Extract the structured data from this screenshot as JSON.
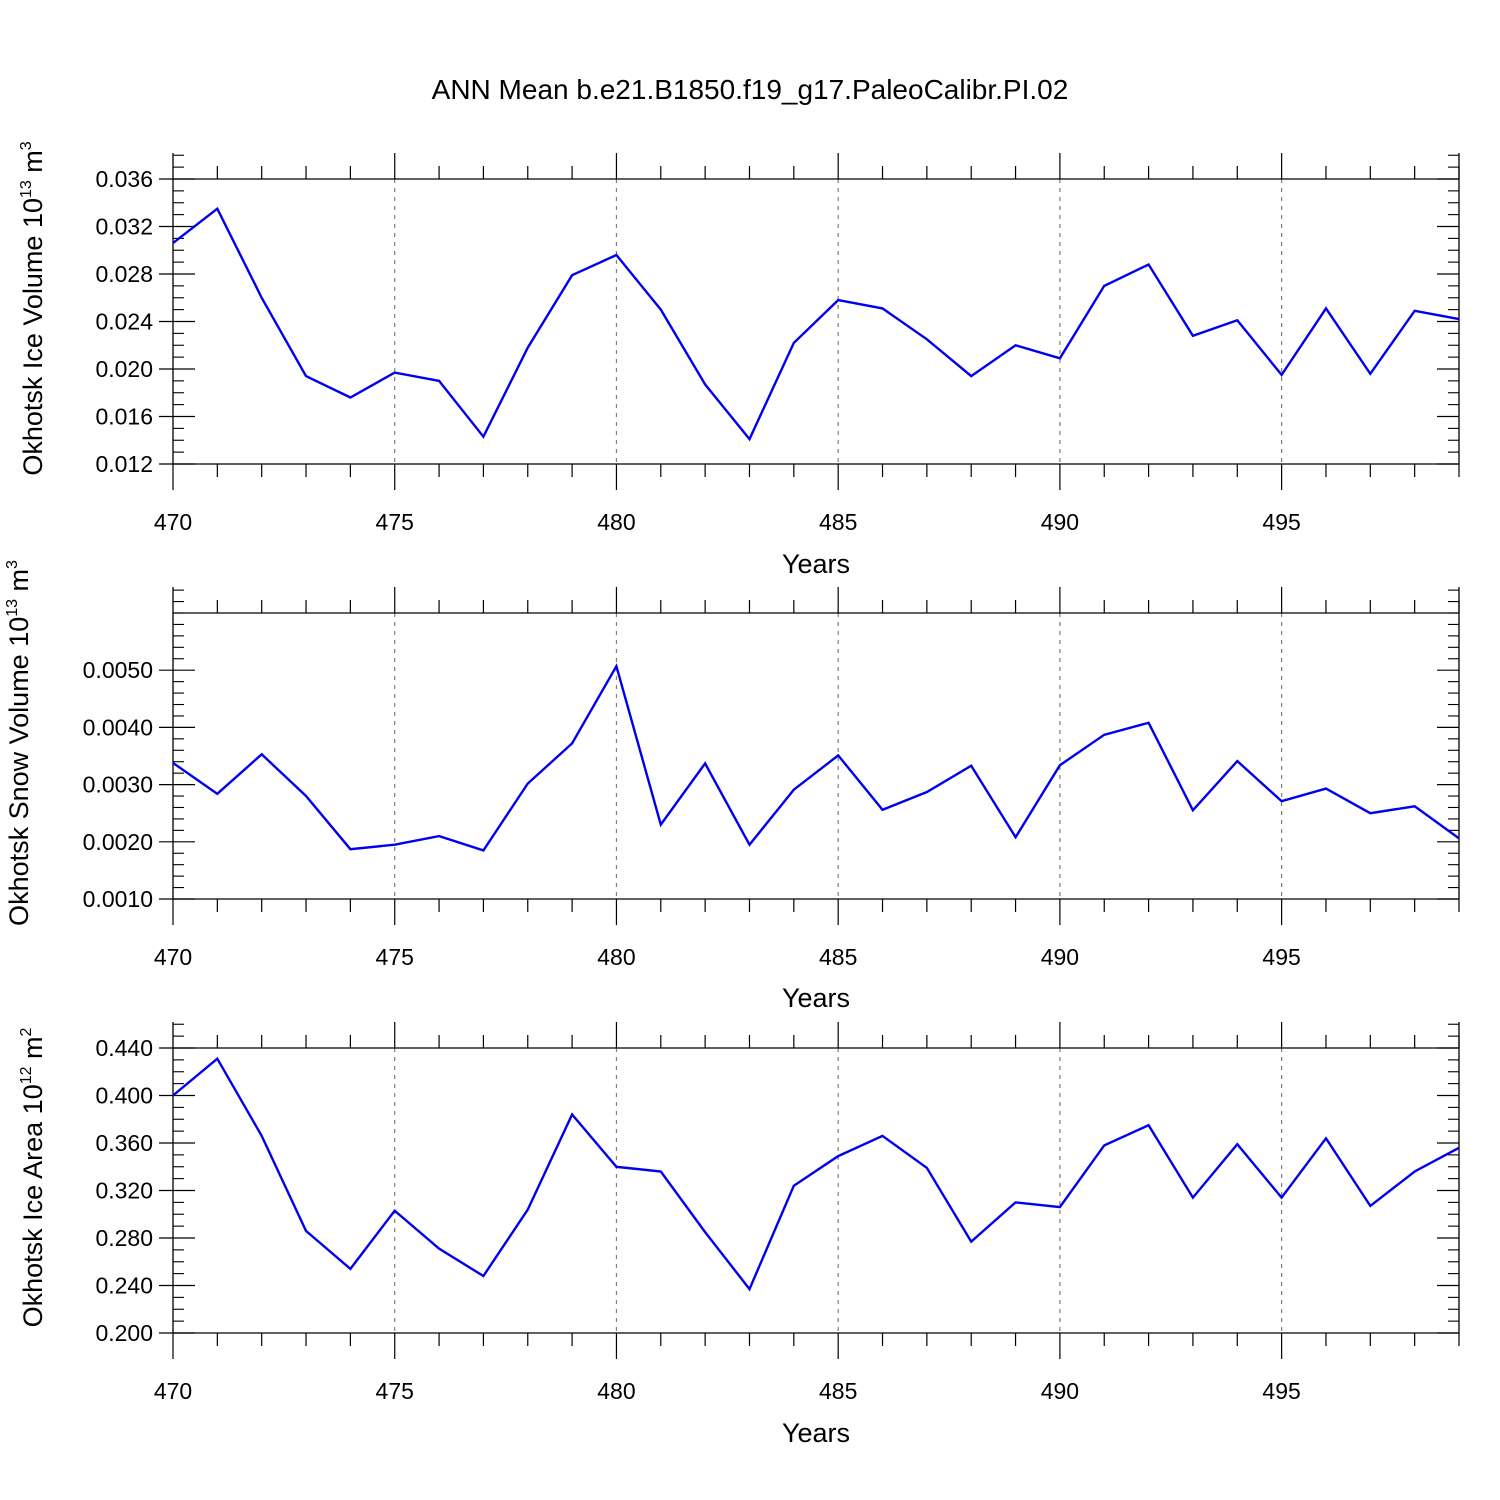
{
  "title": "ANN Mean b.e21.B1850.f19_g17.PaleoCalibr.PI.02",
  "colors": {
    "line": "#0000ee",
    "frame": "#000000",
    "grid": "#7f7f7f"
  },
  "chart_data": [
    {
      "type": "line",
      "ylabel": "Okhotsk Ice Volume 10",
      "ylabel_exp": "13",
      "ylabel_unit": "m",
      "ylabel_unit_exp": "3",
      "xlabel": "Years",
      "xlim": [
        470,
        499
      ],
      "ylim": [
        0.012,
        0.036
      ],
      "xticks": [
        470,
        475,
        480,
        485,
        490,
        495
      ],
      "xtick_labels": [
        "470",
        "475",
        "480",
        "485",
        "490",
        "495"
      ],
      "yticks": [
        0.012,
        0.016,
        0.02,
        0.024,
        0.028,
        0.032,
        0.036
      ],
      "ytick_labels": [
        "0.012",
        "0.016",
        "0.020",
        "0.024",
        "0.028",
        "0.032",
        "0.036"
      ],
      "y_minor_step": 0.001,
      "grid": "vertical-dashed",
      "x": [
        470,
        471,
        472,
        473,
        474,
        475,
        476,
        477,
        478,
        479,
        480,
        481,
        482,
        483,
        484,
        485,
        486,
        487,
        488,
        489,
        490,
        491,
        492,
        493,
        494,
        495,
        496,
        497,
        498,
        499
      ],
      "values": [
        0.0306,
        0.0335,
        0.026,
        0.0194,
        0.0176,
        0.0197,
        0.019,
        0.0143,
        0.0218,
        0.0279,
        0.0296,
        0.025,
        0.0187,
        0.0141,
        0.0222,
        0.0258,
        0.0251,
        0.0225,
        0.0194,
        0.022,
        0.0209,
        0.027,
        0.0288,
        0.0228,
        0.0241,
        0.0195,
        0.0251,
        0.0196,
        0.0249,
        0.0242
      ]
    },
    {
      "type": "line",
      "ylabel": "Okhotsk Snow Volume 10",
      "ylabel_exp": "13",
      "ylabel_unit": "m",
      "ylabel_unit_exp": "3",
      "xlabel": "Years",
      "xlim": [
        470,
        499
      ],
      "ylim": [
        0.001,
        0.006
      ],
      "xticks": [
        470,
        475,
        480,
        485,
        490,
        495
      ],
      "xtick_labels": [
        "470",
        "475",
        "480",
        "485",
        "490",
        "495"
      ],
      "yticks": [
        0.001,
        0.002,
        0.003,
        0.004,
        0.005
      ],
      "ytick_labels": [
        "0.0010",
        "0.0020",
        "0.0030",
        "0.0040",
        "0.0050"
      ],
      "y_minor_step": 0.0002,
      "grid": "vertical-dashed",
      "x": [
        470,
        471,
        472,
        473,
        474,
        475,
        476,
        477,
        478,
        479,
        480,
        481,
        482,
        483,
        484,
        485,
        486,
        487,
        488,
        489,
        490,
        491,
        492,
        493,
        494,
        495,
        496,
        497,
        498,
        499
      ],
      "values": [
        0.00338,
        0.00284,
        0.00353,
        0.0028,
        0.00187,
        0.00195,
        0.0021,
        0.00185,
        0.00302,
        0.00372,
        0.00507,
        0.0023,
        0.00337,
        0.00195,
        0.00291,
        0.00351,
        0.00256,
        0.00287,
        0.00333,
        0.00208,
        0.00334,
        0.00387,
        0.00408,
        0.00255,
        0.00341,
        0.00271,
        0.00293,
        0.0025,
        0.00262,
        0.00206
      ]
    },
    {
      "type": "line",
      "ylabel": "Okhotsk Ice Area 10",
      "ylabel_exp": "12",
      "ylabel_unit": "m",
      "ylabel_unit_exp": "2",
      "xlabel": "Years",
      "xlim": [
        470,
        499
      ],
      "ylim": [
        0.2,
        0.44
      ],
      "xticks": [
        470,
        475,
        480,
        485,
        490,
        495
      ],
      "xtick_labels": [
        "470",
        "475",
        "480",
        "485",
        "490",
        "495"
      ],
      "yticks": [
        0.2,
        0.24,
        0.28,
        0.32,
        0.36,
        0.4,
        0.44
      ],
      "ytick_labels": [
        "0.200",
        "0.240",
        "0.280",
        "0.320",
        "0.360",
        "0.400",
        "0.440"
      ],
      "y_minor_step": 0.01,
      "grid": "vertical-dashed",
      "x": [
        470,
        471,
        472,
        473,
        474,
        475,
        476,
        477,
        478,
        479,
        480,
        481,
        482,
        483,
        484,
        485,
        486,
        487,
        488,
        489,
        490,
        491,
        492,
        493,
        494,
        495,
        496,
        497,
        498,
        499
      ],
      "values": [
        0.4,
        0.431,
        0.366,
        0.286,
        0.254,
        0.303,
        0.271,
        0.248,
        0.304,
        0.384,
        0.34,
        0.336,
        0.285,
        0.237,
        0.324,
        0.349,
        0.366,
        0.339,
        0.277,
        0.31,
        0.306,
        0.358,
        0.375,
        0.314,
        0.359,
        0.314,
        0.364,
        0.307,
        0.336,
        0.356
      ]
    }
  ]
}
